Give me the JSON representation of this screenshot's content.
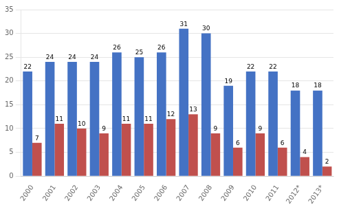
{
  "chart_data": {
    "type": "bar",
    "categories": [
      "2000",
      "2001",
      "2002",
      "2003",
      "2004",
      "2005",
      "2006",
      "2007",
      "2008",
      "2009",
      "2010",
      "2011",
      "2012*",
      "2013*"
    ],
    "series": [
      {
        "color": "#4472C4",
        "values": [
          22,
          24,
          24,
          24,
          26,
          25,
          26,
          31,
          30,
          19,
          22,
          22,
          18,
          18
        ]
      },
      {
        "color": "#C0504D",
        "values": [
          7,
          11,
          10,
          9,
          11,
          11,
          12,
          13,
          9,
          6,
          9,
          6,
          4,
          2
        ]
      }
    ],
    "ylim": [
      0,
      35
    ],
    "yticks": [
      0,
      5,
      10,
      15,
      20,
      25,
      30,
      35
    ],
    "grid": true,
    "data_labels": true
  }
}
